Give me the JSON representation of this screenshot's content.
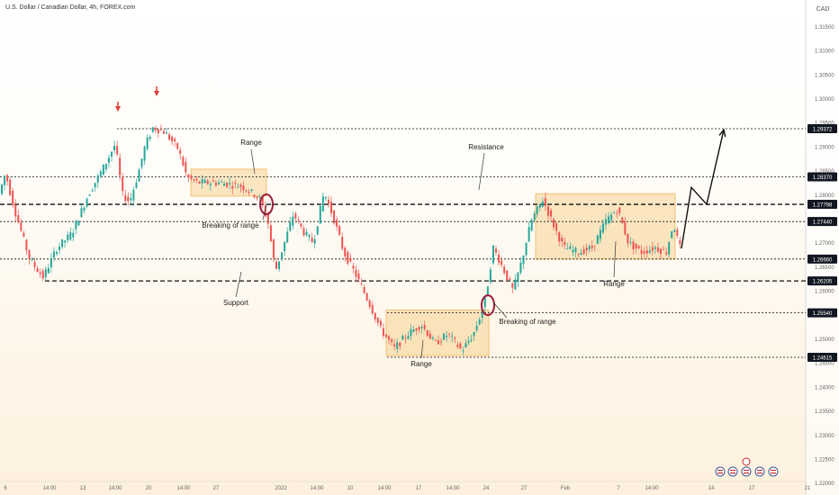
{
  "header": {
    "title": "U.S. Dollar / Canadian Dollar, 4h, FOREX.com",
    "currency": "CAD"
  },
  "colors": {
    "bull": "#26a69a",
    "bear": "#ef5350",
    "zone": "#f7c97e",
    "circle": "#9c1b3c",
    "arrow_marker": "#e53935",
    "label_bg": "#131722"
  },
  "chart_data": {
    "type": "candlestick",
    "ylim": [
      1.2175,
      1.3205
    ],
    "y_ticks": [
      "1.31500",
      "1.31000",
      "1.30500",
      "1.30000",
      "1.29500",
      "1.29000",
      "1.28500",
      "1.28000",
      "1.27500",
      "1.27000",
      "1.26500",
      "1.26000",
      "1.25500",
      "1.25000",
      "1.24500",
      "1.24000",
      "1.23500",
      "1.23000",
      "1.22500",
      "1.22000"
    ],
    "x_ticks": [
      "6",
      "14:00",
      "13",
      "14:00",
      "20",
      "14:00",
      "27",
      "2022",
      "14:00",
      "10",
      "14:00",
      "17",
      "14:00",
      "24",
      "27",
      "Feb",
      "7",
      "14:00",
      "14",
      "17",
      "21"
    ],
    "price_levels": [
      {
        "label": "1.29372",
        "value": 1.29372,
        "style": "dotted"
      },
      {
        "label": "1.28370",
        "value": 1.2837,
        "style": "dotted"
      },
      {
        "label": "1.27798",
        "value": 1.27798,
        "style": "dashed"
      },
      {
        "label": "1.27440",
        "value": 1.2744,
        "style": "dotted"
      },
      {
        "label": "1.26660",
        "value": 1.2666,
        "style": "dotted"
      },
      {
        "label": "1.26205",
        "value": 1.26205,
        "style": "dashed"
      },
      {
        "label": "1.25540",
        "value": 1.2554,
        "style": "dotted"
      },
      {
        "label": "1.24615",
        "value": 1.24615,
        "style": "dotted"
      }
    ],
    "annotations": [
      {
        "text": "Range"
      },
      {
        "text": "Breaking of range"
      },
      {
        "text": "Resistance"
      },
      {
        "text": "Support"
      },
      {
        "text": "Range"
      },
      {
        "text": "Breaking of range"
      },
      {
        "text": "Range"
      }
    ],
    "path_points": [
      [
        0,
        1.2795
      ],
      [
        8,
        1.2845
      ],
      [
        18,
        1.277
      ],
      [
        35,
        1.2665
      ],
      [
        50,
        1.2628
      ],
      [
        65,
        1.2688
      ],
      [
        82,
        1.272
      ],
      [
        100,
        1.28
      ],
      [
        118,
        1.286
      ],
      [
        130,
        1.2905
      ],
      [
        138,
        1.28
      ],
      [
        146,
        1.2785
      ],
      [
        155,
        1.284
      ],
      [
        163,
        1.29
      ],
      [
        172,
        1.294
      ],
      [
        185,
        1.293
      ],
      [
        200,
        1.2895
      ],
      [
        210,
        1.2835
      ],
      [
        222,
        1.2825
      ],
      [
        245,
        1.2825
      ],
      [
        270,
        1.2818
      ],
      [
        285,
        1.28
      ],
      [
        292,
        1.2788
      ],
      [
        300,
        1.274
      ],
      [
        308,
        1.264
      ],
      [
        318,
        1.27
      ],
      [
        328,
        1.276
      ],
      [
        340,
        1.272
      ],
      [
        350,
        1.27
      ],
      [
        362,
        1.2805
      ],
      [
        372,
        1.2755
      ],
      [
        384,
        1.268
      ],
      [
        398,
        1.263
      ],
      [
        412,
        1.2575
      ],
      [
        425,
        1.252
      ],
      [
        440,
        1.248
      ],
      [
        455,
        1.251
      ],
      [
        470,
        1.253
      ],
      [
        485,
        1.249
      ],
      [
        500,
        1.251
      ],
      [
        515,
        1.2475
      ],
      [
        528,
        1.251
      ],
      [
        535,
        1.2545
      ],
      [
        542,
        1.259
      ],
      [
        550,
        1.269
      ],
      [
        560,
        1.265
      ],
      [
        572,
        1.26
      ],
      [
        582,
        1.2665
      ],
      [
        592,
        1.2745
      ],
      [
        605,
        1.279
      ],
      [
        615,
        1.2745
      ],
      [
        628,
        1.269
      ],
      [
        645,
        1.268
      ],
      [
        660,
        1.269
      ],
      [
        675,
        1.2745
      ],
      [
        688,
        1.277
      ],
      [
        700,
        1.27
      ],
      [
        715,
        1.268
      ],
      [
        730,
        1.269
      ],
      [
        742,
        1.268
      ],
      [
        750,
        1.274
      ],
      [
        757,
        1.269
      ]
    ],
    "projection": [
      [
        757,
        1.2688
      ],
      [
        768,
        1.2815
      ],
      [
        785,
        1.278
      ],
      [
        804,
        1.2935
      ]
    ],
    "range_zones": [
      {
        "x0": 212,
        "x1": 296,
        "top": 1.2853,
        "bottom": 1.2797
      },
      {
        "x0": 429,
        "x1": 543,
        "top": 1.256,
        "bottom": 1.2465
      },
      {
        "x0": 595,
        "x1": 750,
        "top": 1.2802,
        "bottom": 1.2666
      }
    ],
    "circles": [
      {
        "x": 296,
        "y": 1.27798
      },
      {
        "x": 542,
        "y": 1.257
      }
    ],
    "top_markers": [
      {
        "x": 131
      },
      {
        "x": 174
      }
    ]
  }
}
